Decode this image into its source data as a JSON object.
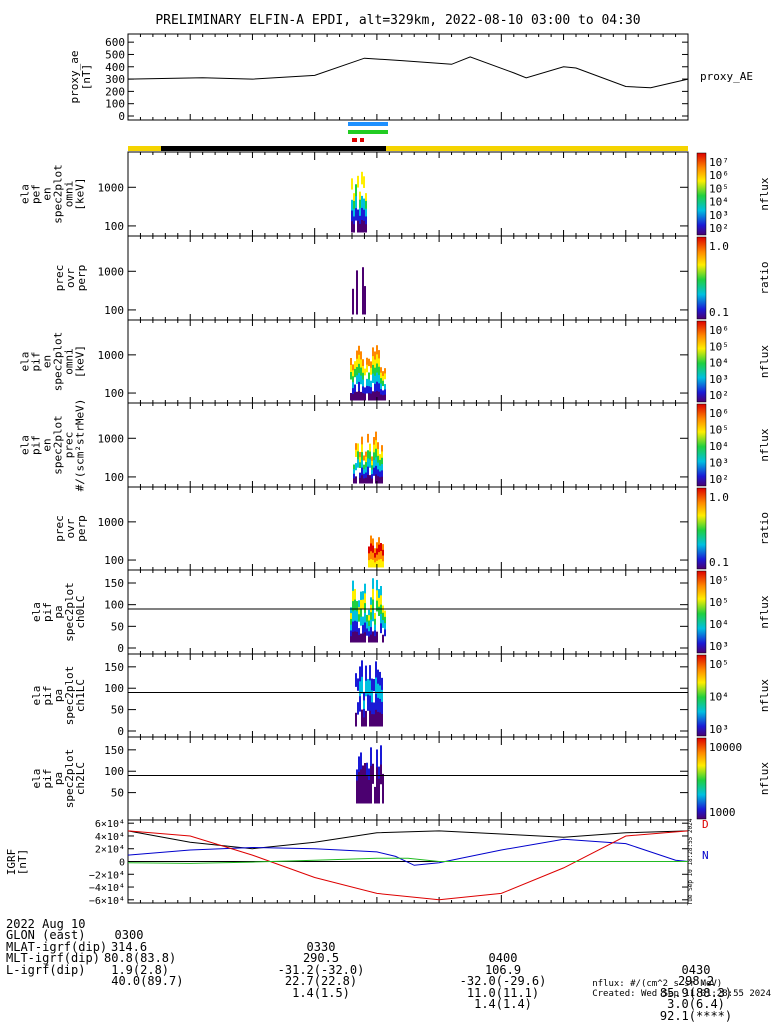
{
  "title": "PRELIMINARY ELFIN-A EPDI, alt=329km, 2022-08-10 03:00 to 04:30",
  "colors": {
    "orbit_bar_yellow": "#f5d400",
    "orbit_bar_black": "#000000",
    "science_zone_blue": "#1e90ff",
    "science_zone_green": "#22cc22",
    "science_zone_red": "#dd0000",
    "bx": "#000000",
    "by": "#0000cc",
    "bz": "#dd0000",
    "bt": "#22bb22"
  },
  "ae_panel": {
    "ylabel_lines": [
      "proxy_ae",
      "[nT]"
    ],
    "ylim": [
      0,
      650
    ],
    "ytick_labels": [
      "0",
      "100",
      "200",
      "300",
      "400",
      "500",
      "600"
    ],
    "legend": "proxy_AE"
  },
  "panels": [
    {
      "id": "p1",
      "ylabel_lines": [
        "ela",
        "pef",
        "en",
        "spec2plot",
        "omni",
        "[keV]"
      ],
      "ytick_labels": [
        "100",
        "1000"
      ],
      "cbar_label": "nflux",
      "cbar_ticks": [
        "10⁷",
        "10⁶",
        "10⁵",
        "10⁴",
        "10³",
        "10²"
      ]
    },
    {
      "id": "p2",
      "ylabel_lines": [
        "prec",
        "ovr",
        "perp"
      ],
      "ytick_labels": [
        "100",
        "1000"
      ],
      "cbar_label": "ratio",
      "cbar_ticks": [
        "1.0",
        "0.1"
      ]
    },
    {
      "id": "p3",
      "ylabel_lines": [
        "ela",
        "pif",
        "en",
        "spec2plot",
        "omni",
        "[keV]"
      ],
      "ytick_labels": [
        "100",
        "1000"
      ],
      "cbar_label": "nflux",
      "cbar_ticks": [
        "10⁶",
        "10⁵",
        "10⁴",
        "10³",
        "10²"
      ]
    },
    {
      "id": "p4",
      "ylabel_lines": [
        "ela",
        "pif",
        "en",
        "spec2plot",
        "prec",
        "#/(scm²strMeV)"
      ],
      "ytick_labels": [
        "100",
        "1000"
      ],
      "cbar_label": "nflux",
      "cbar_ticks": [
        "10⁶",
        "10⁵",
        "10⁴",
        "10³",
        "10²"
      ]
    },
    {
      "id": "p5",
      "ylabel_lines": [
        "prec",
        "ovr",
        "perp"
      ],
      "ytick_labels": [
        "100",
        "1000"
      ],
      "cbar_label": "ratio",
      "cbar_ticks": [
        "1.0",
        "0.1"
      ]
    },
    {
      "id": "p6",
      "ylabel_lines": [
        "ela",
        "pif",
        "pa",
        "spec2plot",
        "ch0LC"
      ],
      "ytick_labels": [
        "0",
        "50",
        "100",
        "150"
      ],
      "cbar_label": "nflux",
      "cbar_ticks": [
        "10⁵",
        "10⁵",
        "10⁴",
        "10³"
      ]
    },
    {
      "id": "p7",
      "ylabel_lines": [
        "ela",
        "pif",
        "pa",
        "spec2plot",
        "ch1LC"
      ],
      "ytick_labels": [
        "0",
        "50",
        "100",
        "150"
      ],
      "cbar_label": "nflux",
      "cbar_ticks": [
        "10⁵",
        "10⁴",
        "10³"
      ]
    },
    {
      "id": "p8",
      "ylabel_lines": [
        "ela",
        "pif",
        "pa",
        "spec2plot",
        "ch2LC"
      ],
      "ytick_labels": [
        "50",
        "100",
        "150"
      ],
      "cbar_label": "nflux",
      "cbar_ticks": [
        "10000",
        "1000"
      ]
    }
  ],
  "igrf_panel": {
    "ylabel_lines": [
      "IGRF",
      "[nT]"
    ],
    "ytick_labels": [
      "6×10⁴",
      "4×10⁴",
      "2×10⁴",
      "0",
      "−2×10⁴",
      "−4×10⁴",
      "−6×10⁴"
    ],
    "legend_letters": [
      "D",
      "N"
    ],
    "side_stamp": "Tue Sep 10 18:28:55 2024"
  },
  "chart_data": {
    "type": "line",
    "title": "PRELIMINARY ELFIN-A EPDI, alt=329km, 2022-08-10 03:00 to 04:30",
    "x_unit": "UT minutes from 03:00",
    "xlim": [
      0,
      90
    ],
    "series": [
      {
        "name": "proxy_AE",
        "x": [
          0,
          12,
          20,
          30,
          38,
          44,
          52,
          55,
          62,
          64,
          70,
          72,
          80,
          84,
          90
        ],
        "values": [
          300,
          310,
          300,
          330,
          470,
          450,
          420,
          480,
          350,
          310,
          400,
          390,
          240,
          230,
          300
        ]
      }
    ],
    "igrf_series": [
      {
        "x": [
          0,
          10,
          20,
          30,
          40,
          50,
          60,
          70,
          80,
          90
        ],
        "values": [
          48000,
          30000,
          20000,
          30000,
          45000,
          48000,
          43000,
          38000,
          45000,
          48000
        ]
      },
      {
        "x": [
          0,
          10,
          20,
          30,
          40,
          43,
          46,
          50,
          60,
          70,
          80,
          88,
          90
        ],
        "values": [
          10000,
          18000,
          22000,
          20000,
          15000,
          8000,
          -6000,
          -2000,
          18000,
          35000,
          28000,
          2000,
          0
        ]
      },
      {
        "x": [
          0,
          10,
          20,
          30,
          40,
          50,
          60,
          70,
          80,
          90
        ],
        "values": [
          48000,
          40000,
          10000,
          -25000,
          -50000,
          -60000,
          -50000,
          -10000,
          40000,
          48000
        ]
      },
      {
        "x": [
          0,
          10,
          20,
          30,
          40,
          45,
          50,
          60,
          70,
          80,
          90
        ],
        "values": [
          -2000,
          -3000,
          -1000,
          2000,
          5000,
          5000,
          0,
          0,
          0,
          0,
          0
        ]
      }
    ],
    "igrf_ylim": [
      -65000,
      65000
    ]
  },
  "footer": {
    "rows": [
      {
        "label": "2022 Aug 10",
        "v": [
          "0300",
          "0330",
          "0400",
          "0430"
        ]
      },
      {
        "label": "GLON (east)",
        "v": [
          "314.6",
          "290.5",
          "106.9",
          "298.2"
        ]
      },
      {
        "label": "MLAT-igrf(dip)",
        "v": [
          "80.8(83.8)",
          "-31.2(-32.0)",
          "-32.0(-29.6)",
          "85.9(88.3)"
        ]
      },
      {
        "label": "MLT-igrf(dip)",
        "v": [
          " 1.9(2.8)",
          "22.7(22.8)",
          "11.0(11.1)",
          "3.0(6.4)"
        ]
      },
      {
        "label": "L-igrf(dip)",
        "v": [
          " 40.0(89.7)",
          "1.4(1.5)",
          "1.4(1.4)",
          "92.1(****)"
        ]
      }
    ],
    "units_note": "nflux: #/(cm^2 s sr MeV)",
    "created": "Created: Wed Sep 11 01:28:55 2024"
  }
}
